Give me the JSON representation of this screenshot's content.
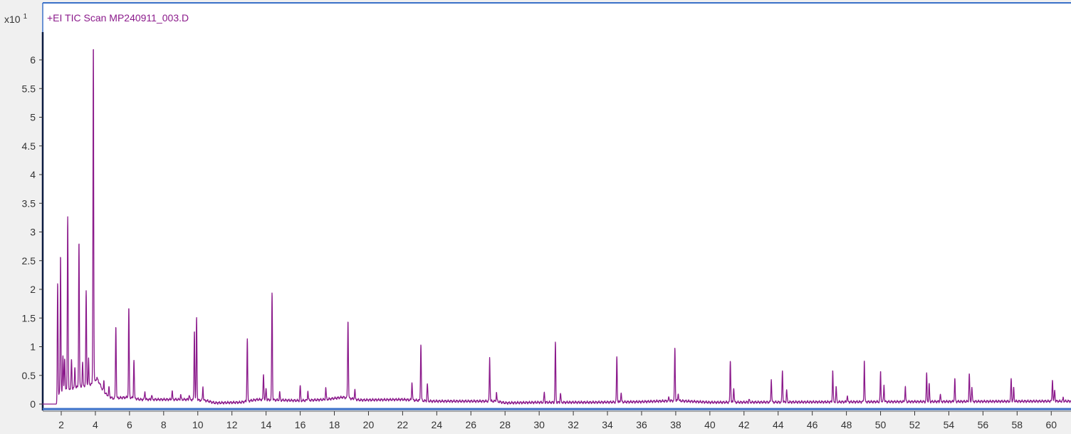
{
  "chart_data": {
    "type": "line",
    "title": "+EI TIC Scan MP240911_003.D",
    "y_multiplier": {
      "base": "x10",
      "exponent": "1"
    },
    "xlabel": "",
    "ylabel": "",
    "xlim": [
      0.9,
      61.2
    ],
    "ylim": [
      -0.1,
      6.9
    ],
    "grid": false,
    "line_color": "#8b1a8b",
    "x_ticks": [
      2,
      4,
      6,
      8,
      10,
      12,
      14,
      16,
      18,
      20,
      22,
      24,
      26,
      28,
      30,
      32,
      34,
      36,
      38,
      40,
      42,
      44,
      46,
      48,
      50,
      52,
      54,
      56,
      58,
      60
    ],
    "y_ticks": [
      0,
      0.5,
      1,
      1.5,
      2,
      2.5,
      3,
      3.5,
      4,
      4.5,
      5,
      5.5,
      6
    ],
    "y_tick_labels": [
      "0",
      "0.5",
      "1",
      "1.5",
      "2",
      "2.5",
      "3",
      "3.5",
      "4",
      "4.5",
      "5",
      "5.5",
      "6"
    ],
    "baseline": [
      [
        0.9,
        0
      ],
      [
        1.75,
        0
      ],
      [
        1.8,
        0.15
      ],
      [
        2.2,
        0.25
      ],
      [
        3.0,
        0.3
      ],
      [
        3.8,
        0.35
      ],
      [
        4.1,
        0.45
      ],
      [
        4.5,
        0.2
      ],
      [
        5.0,
        0.1
      ],
      [
        6.0,
        0.12
      ],
      [
        6.6,
        0.08
      ],
      [
        8,
        0.08
      ],
      [
        9.5,
        0.08
      ],
      [
        10.5,
        0.06
      ],
      [
        11,
        0.02
      ],
      [
        12.5,
        0.03
      ],
      [
        13.5,
        0.08
      ],
      [
        16,
        0.06
      ],
      [
        17.5,
        0.08
      ],
      [
        18.5,
        0.12
      ],
      [
        19.5,
        0.07
      ],
      [
        22,
        0.08
      ],
      [
        23.7,
        0.05
      ],
      [
        26,
        0.05
      ],
      [
        27.5,
        0.05
      ],
      [
        28,
        0.02
      ],
      [
        30,
        0.03
      ],
      [
        33,
        0.03
      ],
      [
        36,
        0.04
      ],
      [
        38,
        0.06
      ],
      [
        40,
        0.03
      ],
      [
        60,
        0.05
      ],
      [
        61.2,
        0.05
      ]
    ],
    "peaks": [
      [
        1.79,
        2.0
      ],
      [
        1.96,
        2.4
      ],
      [
        2.1,
        0.6
      ],
      [
        2.2,
        0.55
      ],
      [
        2.38,
        3.0
      ],
      [
        2.6,
        0.5
      ],
      [
        2.8,
        0.35
      ],
      [
        3.04,
        2.53
      ],
      [
        3.25,
        0.4
      ],
      [
        3.46,
        1.63
      ],
      [
        3.6,
        0.45
      ],
      [
        3.88,
        5.9
      ],
      [
        4.5,
        0.2
      ],
      [
        4.8,
        0.15
      ],
      [
        5.2,
        1.25
      ],
      [
        5.96,
        1.55
      ],
      [
        6.26,
        0.68
      ],
      [
        6.9,
        0.15
      ],
      [
        7.3,
        0.08
      ],
      [
        8.5,
        0.14
      ],
      [
        9.0,
        0.08
      ],
      [
        9.5,
        0.08
      ],
      [
        9.8,
        1.22
      ],
      [
        9.93,
        1.45
      ],
      [
        10.3,
        0.24
      ],
      [
        12.9,
        1.1
      ],
      [
        13.85,
        0.45
      ],
      [
        14.0,
        0.2
      ],
      [
        14.35,
        1.88
      ],
      [
        14.8,
        0.13
      ],
      [
        16.0,
        0.26
      ],
      [
        16.45,
        0.16
      ],
      [
        17.5,
        0.2
      ],
      [
        18.8,
        1.35
      ],
      [
        19.2,
        0.16
      ],
      [
        22.55,
        0.32
      ],
      [
        23.07,
        0.98
      ],
      [
        23.45,
        0.3
      ],
      [
        27.1,
        0.77
      ],
      [
        27.5,
        0.15
      ],
      [
        30.3,
        0.18
      ],
      [
        30.95,
        1.03
      ],
      [
        31.25,
        0.16
      ],
      [
        34.55,
        0.78
      ],
      [
        34.8,
        0.16
      ],
      [
        37.6,
        0.06
      ],
      [
        37.95,
        0.92
      ],
      [
        38.15,
        0.13
      ],
      [
        41.2,
        0.74
      ],
      [
        41.4,
        0.26
      ],
      [
        42.3,
        0.05
      ],
      [
        43.6,
        0.41
      ],
      [
        44.25,
        0.56
      ],
      [
        44.5,
        0.21
      ],
      [
        47.2,
        0.56
      ],
      [
        47.4,
        0.26
      ],
      [
        48.05,
        0.11
      ],
      [
        49.05,
        0.72
      ],
      [
        50.0,
        0.52
      ],
      [
        50.2,
        0.3
      ],
      [
        51.45,
        0.26
      ],
      [
        52.7,
        0.48
      ],
      [
        52.85,
        0.3
      ],
      [
        53.5,
        0.13
      ],
      [
        54.35,
        0.39
      ],
      [
        55.2,
        0.48
      ],
      [
        55.35,
        0.26
      ],
      [
        57.65,
        0.4
      ],
      [
        57.8,
        0.23
      ],
      [
        60.07,
        0.38
      ],
      [
        60.2,
        0.2
      ],
      [
        60.7,
        0.06
      ]
    ]
  }
}
